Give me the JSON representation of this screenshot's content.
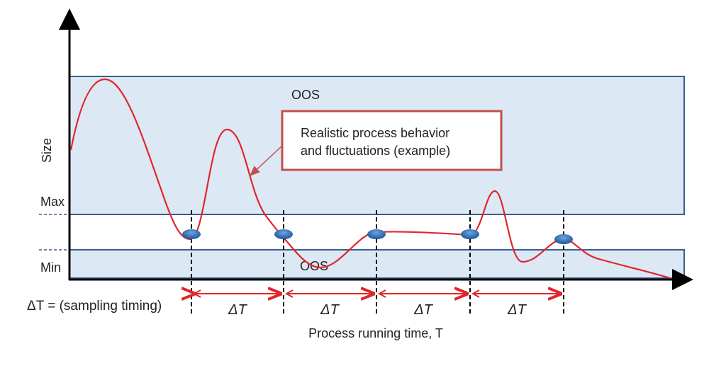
{
  "diagram": {
    "y_axis_label": "Size",
    "x_axis_label": "Process running time, T",
    "max_label": "Max",
    "min_label": "Min",
    "oos_upper_label": "OOS",
    "oos_lower_label": "OOS",
    "callout": {
      "line1": "Realistic process behavior",
      "line2": "and fluctuations (example)"
    },
    "delta_t_definition": "ΔT = (sampling timing)",
    "interval_labels": [
      "ΔT",
      "ΔT",
      "ΔT",
      "ΔT"
    ],
    "colors": {
      "oos_fill": "#dde8f5",
      "oos_border": "#3a5f8f",
      "curve": "#e0262b",
      "sample_point": "#2f6db5",
      "callout_border": "#c0504d"
    }
  }
}
